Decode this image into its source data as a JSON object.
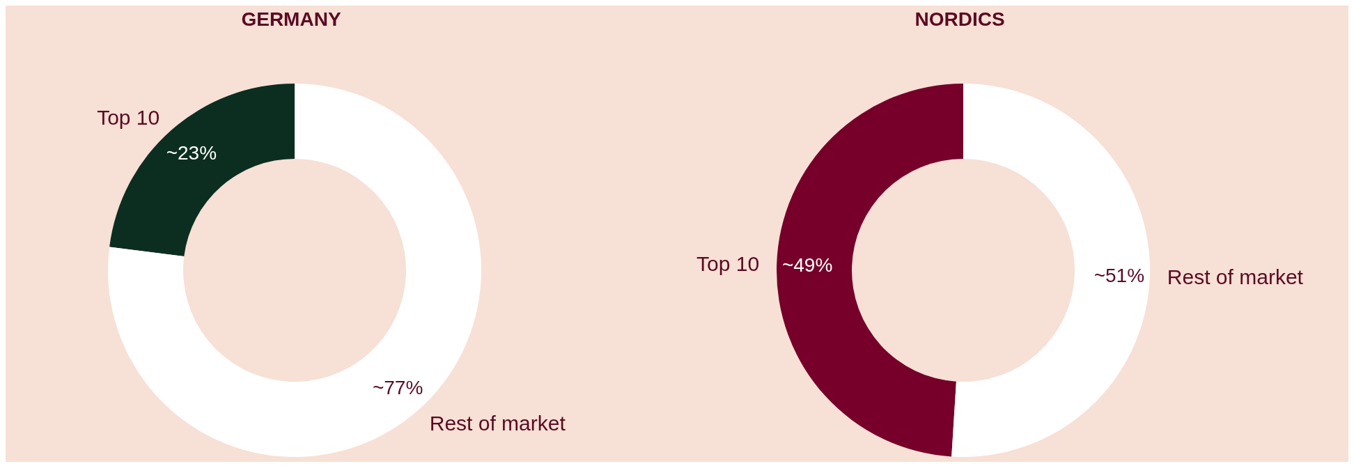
{
  "chart_data": [
    {
      "type": "donut",
      "title": "GERMANY",
      "categories": [
        "Top 10",
        "Rest of market"
      ],
      "values": [
        23,
        77
      ],
      "colors": [
        "#0b2e20",
        "#ffffff"
      ],
      "value_labels": [
        "~23%",
        "~77%"
      ],
      "legend": false
    },
    {
      "type": "donut",
      "title": "NORDICS",
      "categories": [
        "Top 10",
        "Rest of market"
      ],
      "values": [
        49,
        51
      ],
      "colors": [
        "#76002a",
        "#ffffff"
      ],
      "value_labels": [
        "~49%",
        "~51%"
      ],
      "legend": false
    }
  ]
}
